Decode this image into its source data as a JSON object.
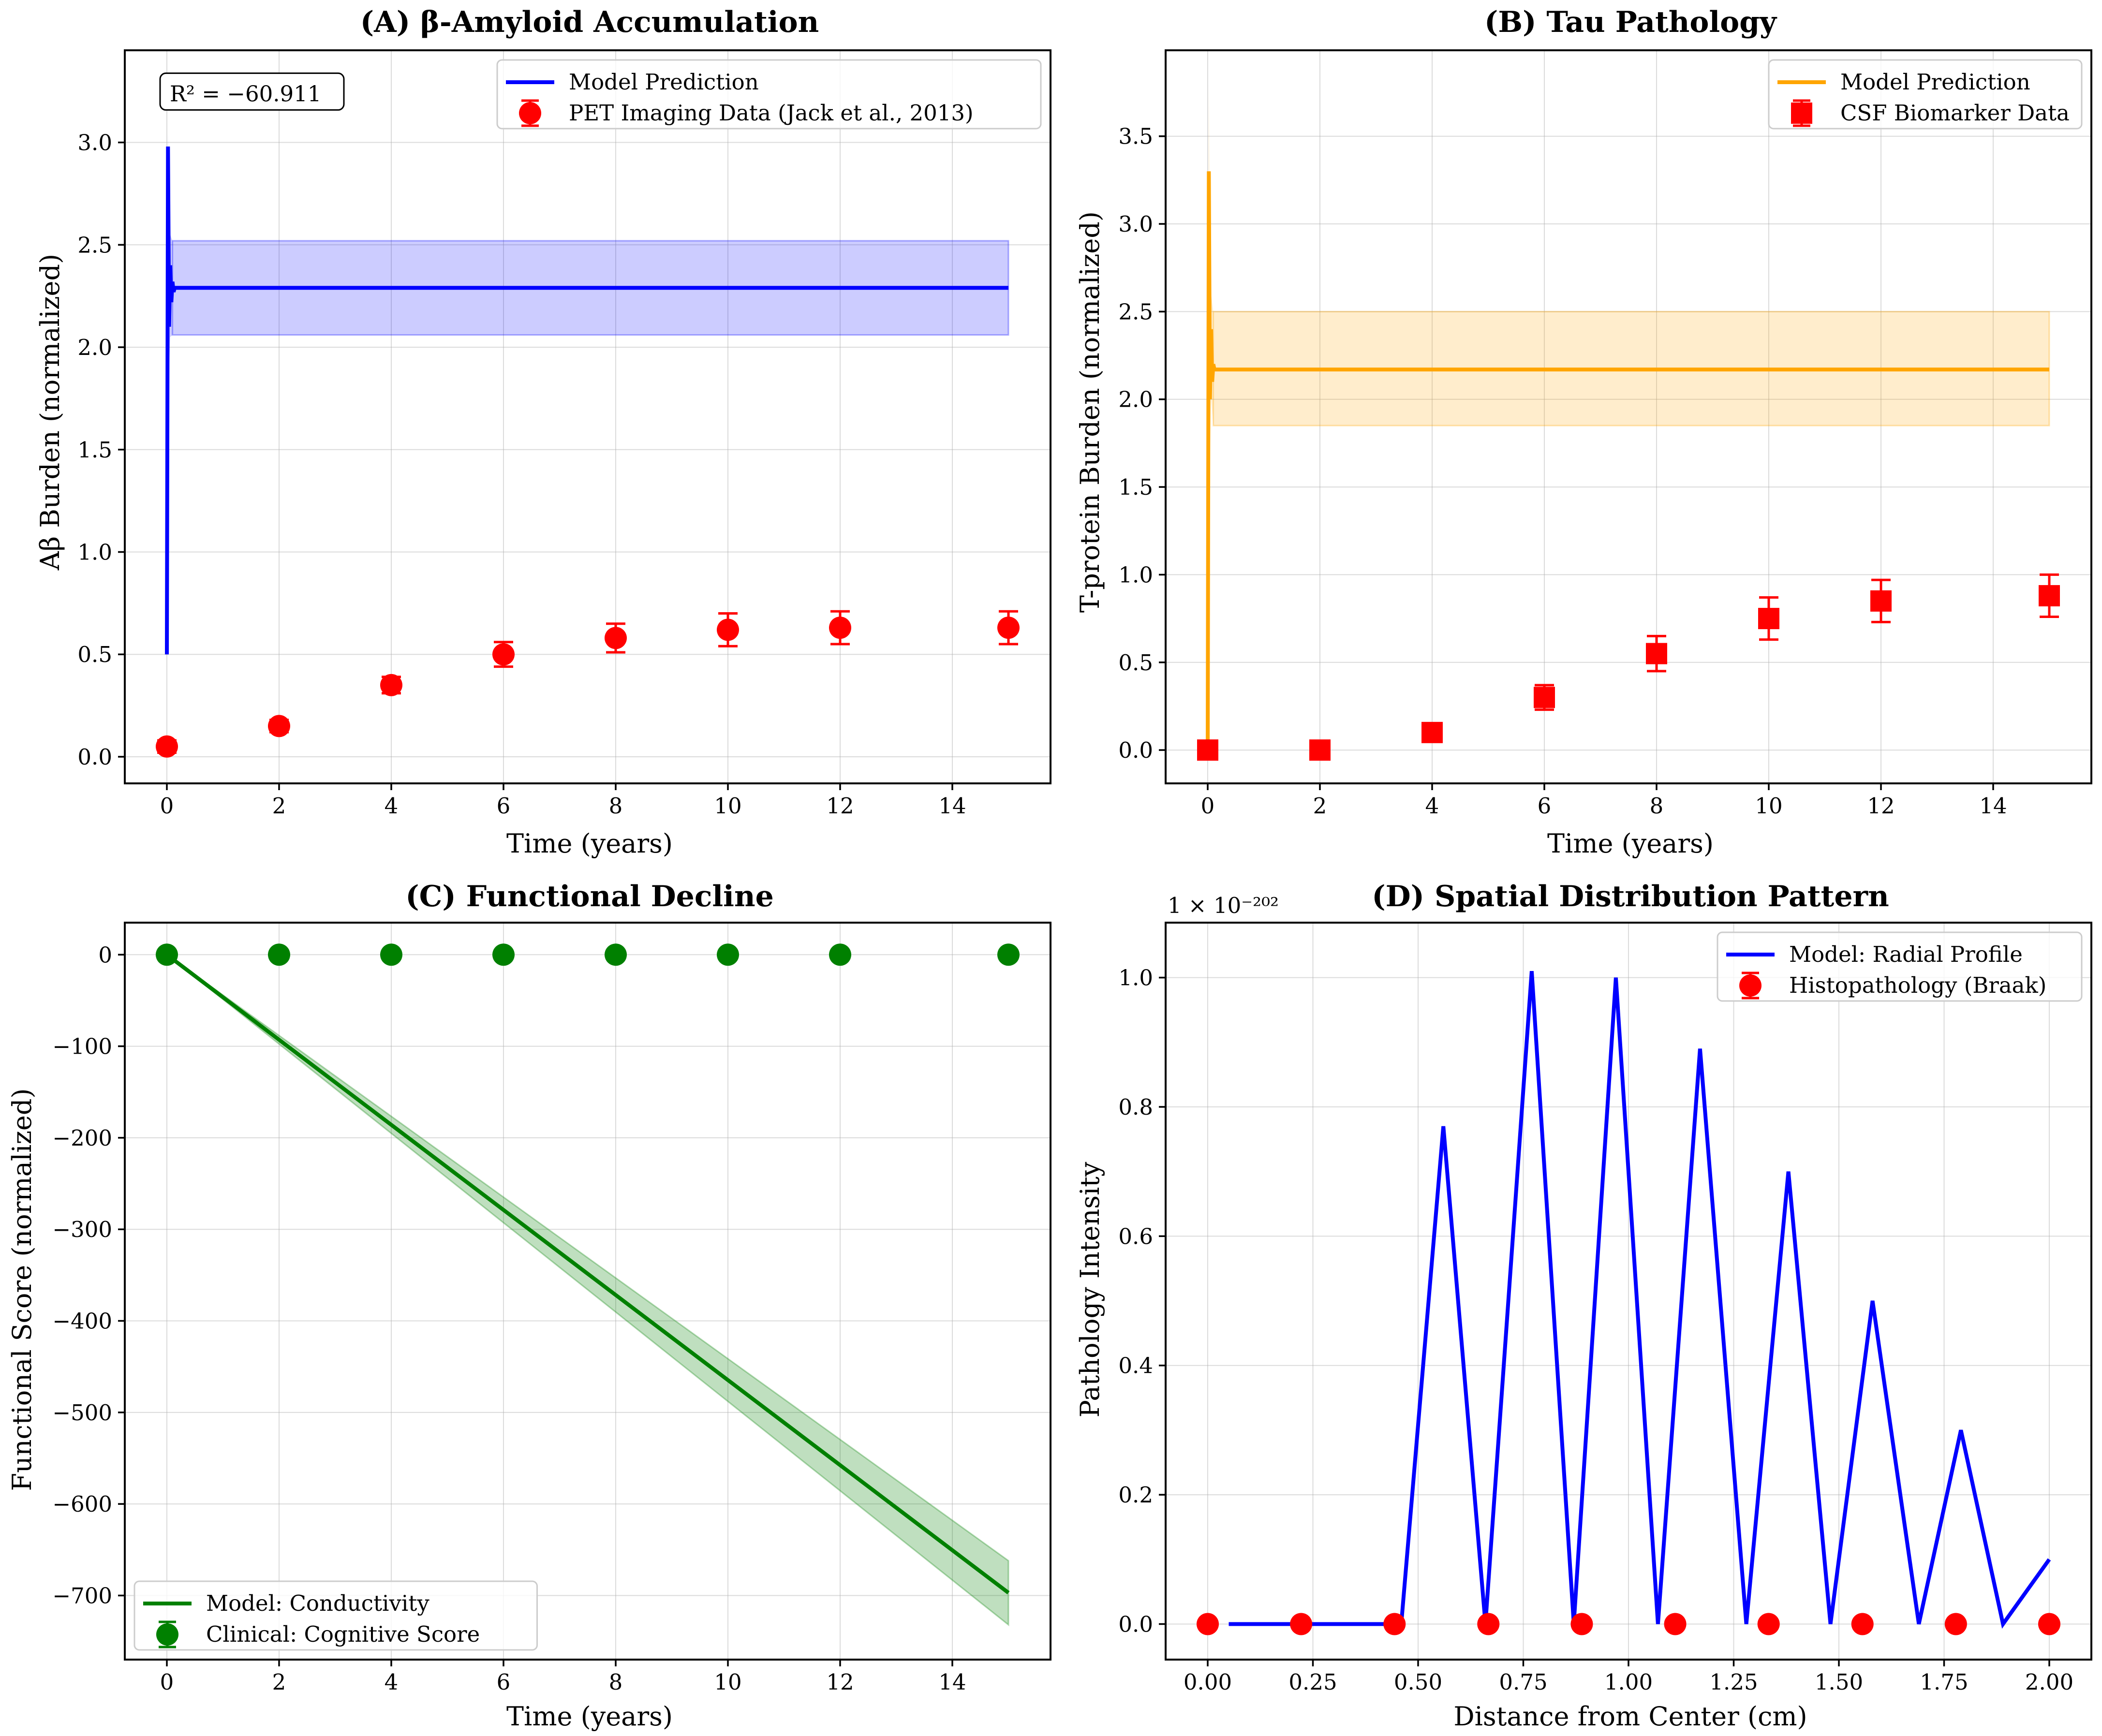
{
  "colors": {
    "blue": "#0000ff",
    "orange": "#ffa500",
    "green": "#008000",
    "red": "#ff0000"
  },
  "chart_data": [
    {
      "type": "line",
      "title": "(A) β-Amyloid Accumulation",
      "xlabel": "Time (years)",
      "ylabel": "Aβ Burden (normalized)",
      "xlim": [
        -0.75,
        15.75
      ],
      "ylim": [
        -0.13,
        3.45
      ],
      "xticks": [
        0,
        2,
        4,
        6,
        8,
        10,
        12,
        14
      ],
      "xtick_labels": [
        "0",
        "2",
        "4",
        "6",
        "8",
        "10",
        "12",
        "14"
      ],
      "yticks": [
        0,
        0.5,
        1,
        1.5,
        2,
        2.5,
        3
      ],
      "ytick_labels": [
        "0.0",
        "0.5",
        "1.0",
        "1.5",
        "2.0",
        "2.5",
        "3.0"
      ],
      "annotation": "R² = −60.911",
      "legend": [
        "Model Prediction",
        "PET Imaging Data (Jack et al., 2013)"
      ],
      "legend_position": "upper right",
      "model": {
        "name": "Model Prediction",
        "x": [
          0,
          0.02,
          0.04,
          0.06,
          0.08,
          0.1,
          0.12,
          0.14,
          15
        ],
        "y": [
          0.5,
          2.98,
          2.1,
          2.4,
          2.22,
          2.32,
          2.27,
          2.29,
          2.29
        ],
        "band": {
          "x": [
            0.1,
            15
          ],
          "lower": [
            2.06,
            2.06
          ],
          "upper": [
            2.52,
            2.52
          ]
        },
        "spike_band": {
          "x": [
            0,
            0.02,
            0.04,
            0.06,
            0.1
          ],
          "lower": [
            0.45,
            2.3,
            1.9,
            2.05,
            2.06
          ],
          "upper": [
            0.55,
            3.05,
            2.6,
            2.55,
            2.52
          ]
        }
      },
      "data": {
        "name": "PET Imaging Data (Jack et al., 2013)",
        "marker": "circle",
        "x": [
          0,
          2,
          4,
          6,
          8,
          10,
          12,
          15
        ],
        "y": [
          0.05,
          0.15,
          0.35,
          0.5,
          0.58,
          0.62,
          0.63,
          0.63
        ],
        "err": [
          0.03,
          0.03,
          0.04,
          0.06,
          0.07,
          0.08,
          0.08,
          0.08
        ]
      }
    },
    {
      "type": "line",
      "title": "(B) Tau Pathology",
      "xlabel": "Time (years)",
      "ylabel": "T-protein Burden (normalized)",
      "xlim": [
        -0.75,
        15.75
      ],
      "ylim": [
        -0.19,
        3.99
      ],
      "xticks": [
        0,
        2,
        4,
        6,
        8,
        10,
        12,
        14
      ],
      "xtick_labels": [
        "0",
        "2",
        "4",
        "6",
        "8",
        "10",
        "12",
        "14"
      ],
      "yticks": [
        0,
        0.5,
        1,
        1.5,
        2,
        2.5,
        3,
        3.5
      ],
      "ytick_labels": [
        "0.0",
        "0.5",
        "1.0",
        "1.5",
        "2.0",
        "2.5",
        "3.0",
        "3.5"
      ],
      "legend": [
        "Model Prediction",
        "CSF Biomarker Data"
      ],
      "legend_position": "upper right",
      "model": {
        "name": "Model Prediction",
        "x": [
          0,
          0.02,
          0.04,
          0.06,
          0.08,
          0.1,
          0.12,
          15
        ],
        "y": [
          0.0,
          3.3,
          2.0,
          2.4,
          2.1,
          2.2,
          2.17,
          2.17
        ],
        "band": {
          "x": [
            0.1,
            15
          ],
          "lower": [
            1.85,
            1.85
          ],
          "upper": [
            2.5,
            2.5
          ]
        },
        "spike_band": {
          "x": [
            0,
            0.02,
            0.04,
            0.06,
            0.1
          ],
          "lower": [
            0.0,
            2.8,
            1.7,
            2.0,
            1.85
          ],
          "upper": [
            0.05,
            3.8,
            2.6,
            2.6,
            2.5
          ]
        }
      },
      "data": {
        "name": "CSF Biomarker Data",
        "marker": "square",
        "x": [
          0,
          2,
          4,
          6,
          8,
          10,
          12,
          15
        ],
        "y": [
          0.0,
          0.0,
          0.1,
          0.3,
          0.55,
          0.75,
          0.85,
          0.88
        ],
        "err": [
          0.02,
          0.02,
          0.05,
          0.07,
          0.1,
          0.12,
          0.12,
          0.12
        ]
      }
    },
    {
      "type": "line",
      "title": "(C) Functional Decline",
      "xlabel": "Time (years)",
      "ylabel": "Functional Score (normalized)",
      "xlim": [
        -0.75,
        15.75
      ],
      "ylim": [
        -770,
        35
      ],
      "xticks": [
        0,
        2,
        4,
        6,
        8,
        10,
        12,
        14
      ],
      "xtick_labels": [
        "0",
        "2",
        "4",
        "6",
        "8",
        "10",
        "12",
        "14"
      ],
      "yticks": [
        0,
        -100,
        -200,
        -300,
        -400,
        -500,
        -600,
        -700
      ],
      "ytick_labels": [
        "0",
        "−100",
        "−200",
        "−300",
        "−400",
        "−500",
        "−600",
        "−700"
      ],
      "legend": [
        "Model: Conductivity",
        "Clinical: Cognitive Score"
      ],
      "legend_position": "lower left",
      "model": {
        "name": "Model: Conductivity",
        "x": [
          0,
          15
        ],
        "y": [
          0,
          -697
        ],
        "band": {
          "x": [
            0,
            15
          ],
          "lower": [
            0,
            -732
          ],
          "upper": [
            0,
            -662
          ]
        }
      },
      "data": {
        "name": "Clinical: Cognitive Score",
        "marker": "circle",
        "x": [
          0,
          2,
          4,
          6,
          8,
          10,
          12,
          15
        ],
        "y": [
          0,
          0,
          0,
          0,
          0,
          0,
          0,
          0
        ],
        "err": [
          0,
          0,
          0,
          0,
          0,
          0,
          0,
          0
        ]
      }
    },
    {
      "type": "line",
      "title": "(D) Spatial Distribution Pattern",
      "xlabel": "Distance from Center (cm)",
      "ylabel": "Pathology Intensity",
      "offset_text": "1 × 10⁻²⁰²",
      "xlim": [
        -0.1,
        2.1
      ],
      "ylim": [
        -0.055,
        1.085
      ],
      "xticks": [
        0,
        0.25,
        0.5,
        0.75,
        1,
        1.25,
        1.5,
        1.75,
        2
      ],
      "xtick_labels": [
        "0.00",
        "0.25",
        "0.50",
        "0.75",
        "1.00",
        "1.25",
        "1.50",
        "1.75",
        "2.00"
      ],
      "yticks": [
        0,
        0.2,
        0.4,
        0.6,
        0.8,
        1.0
      ],
      "ytick_labels": [
        "0.0",
        "0.2",
        "0.4",
        "0.6",
        "0.8",
        "1.0"
      ],
      "legend": [
        "Model: Radial Profile",
        "Histopathology (Braak)"
      ],
      "legend_position": "upper right",
      "model": {
        "name": "Model: Radial Profile",
        "x": [
          0.05,
          0.46,
          0.56,
          0.66,
          0.77,
          0.87,
          0.97,
          1.07,
          1.17,
          1.28,
          1.38,
          1.48,
          1.58,
          1.69,
          1.79,
          1.89,
          2.0
        ],
        "y": [
          0,
          0,
          0.77,
          0,
          1.01,
          0,
          1.0,
          0,
          0.89,
          0,
          0.7,
          0,
          0.5,
          0,
          0.3,
          0,
          0.1
        ]
      },
      "data": {
        "name": "Histopathology (Braak)",
        "marker": "circle",
        "x": [
          0,
          0.222,
          0.444,
          0.667,
          0.889,
          1.111,
          1.333,
          1.556,
          1.778,
          2.0
        ],
        "y": [
          0,
          0,
          0,
          0,
          0,
          0,
          0,
          0,
          0,
          0
        ],
        "err": [
          0,
          0,
          0,
          0,
          0,
          0,
          0,
          0,
          0,
          0
        ]
      }
    }
  ]
}
